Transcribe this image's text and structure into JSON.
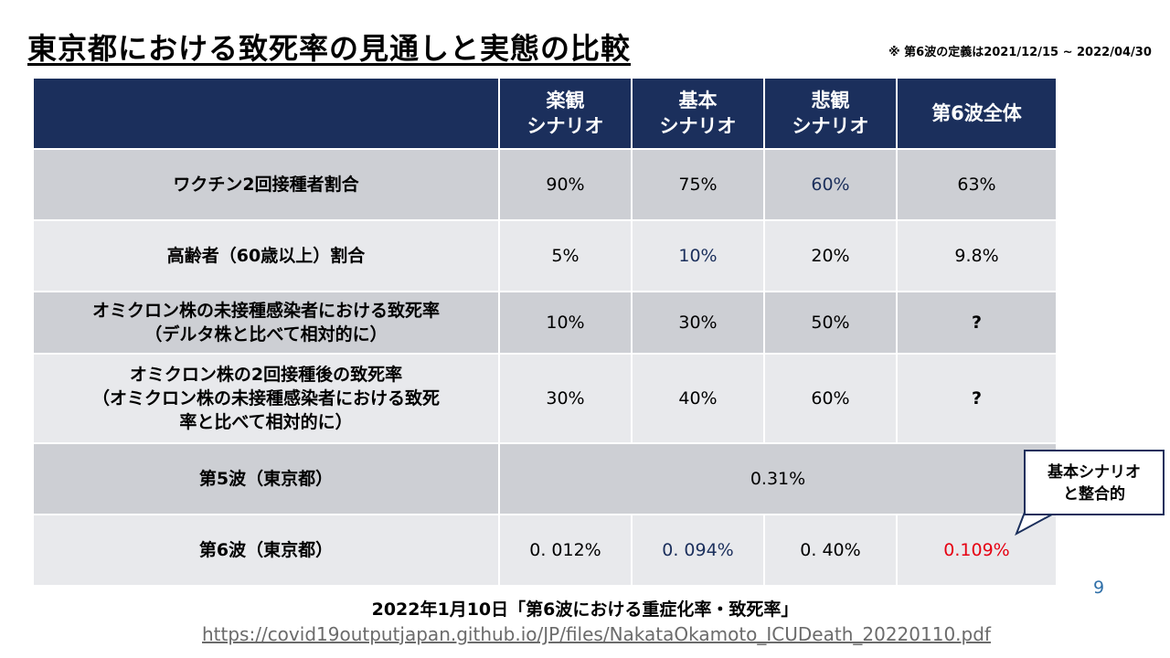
{
  "title": "東京都における致死率の見通しと実態の比較",
  "note": "※ 第6波の定義は2021/12/15 ~ 2022/04/30",
  "table": {
    "headers": [
      "",
      "楽観\nシナリオ",
      "基本\nシナリオ",
      "悲観\nシナリオ",
      "第6波全体"
    ],
    "rows": [
      {
        "label": "ワクチン2回接種者割合",
        "values": [
          "90%",
          "75%",
          "60%",
          "63%"
        ]
      },
      {
        "label": "高齢者（60歳以上）割合",
        "values": [
          "5%",
          "10%",
          "20%",
          "9.8%"
        ]
      },
      {
        "label": "オミクロン株の未接種感染者における致死率\n（デルタ株と比べて相対的に）",
        "values": [
          "10%",
          "30%",
          "50%",
          "?"
        ]
      },
      {
        "label": "オミクロン株の2回接種後の致死率\n（オミクロン株の未接種感染者における致死\n率と比べて相対的に）",
        "values": [
          "30%",
          "40%",
          "60%",
          "?"
        ]
      },
      {
        "label": "第5波（東京都）",
        "merged_value": "0.31%"
      },
      {
        "label": "第6波（東京都）",
        "values": [
          "0. 012%",
          "0. 094%",
          "0. 40%",
          "0.109%"
        ]
      }
    ]
  },
  "callout": "基本シナリオ\nと整合的",
  "page_number": "9",
  "caption": "2022年1月10日「第6波における重症化率・致死率」",
  "source_link": "https://covid19outputjapan.github.io/JP/files/NakataOkamoto_ICUDeath_20220110.pdf",
  "colors": {
    "header_bg": "#1b2f5c",
    "row_dark": "#cdcfd4",
    "row_light": "#e8e9ec",
    "highlight_blue": "#1b2f5c",
    "highlight_red": "#e60012"
  }
}
